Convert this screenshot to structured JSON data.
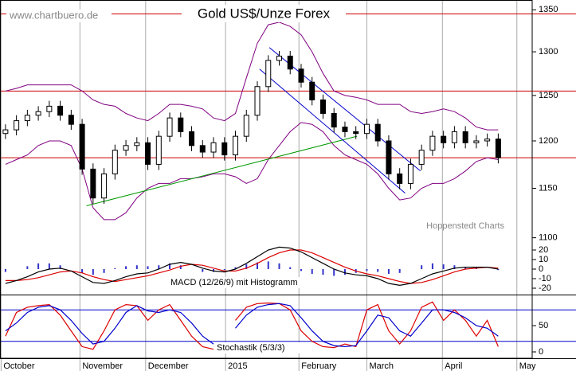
{
  "chart_data": [
    {
      "type": "candlestick",
      "title": "Gold US$/Unze Forex",
      "source": "www.chartbuero.de",
      "credit": "Hoppenstedt Charts",
      "log": true,
      "ylim": [
        1095,
        1360
      ],
      "yticks": [
        1100,
        1150,
        1200,
        1250,
        1300,
        1350
      ],
      "open": [
        1208,
        1212,
        1222,
        1228,
        1232,
        1238,
        1228,
        1218,
        1170,
        1140,
        1165,
        1190,
        1195,
        1198,
        1175,
        1205,
        1225,
        1210,
        1195,
        1188,
        1198,
        1185,
        1205,
        1228,
        1260,
        1290,
        1295,
        1280,
        1265,
        1245,
        1230,
        1215,
        1210,
        1208,
        1218,
        1200,
        1165,
        1155,
        1175,
        1190,
        1205,
        1198,
        1210,
        1198,
        1200,
        1202
      ],
      "high": [
        1218,
        1228,
        1234,
        1238,
        1244,
        1244,
        1234,
        1224,
        1176,
        1171,
        1196,
        1201,
        1204,
        1204,
        1211,
        1231,
        1231,
        1216,
        1201,
        1204,
        1204,
        1211,
        1234,
        1266,
        1296,
        1301,
        1301,
        1286,
        1271,
        1251,
        1236,
        1221,
        1216,
        1224,
        1224,
        1206,
        1171,
        1181,
        1196,
        1211,
        1211,
        1216,
        1216,
        1206,
        1208,
        1208
      ],
      "low": [
        1202,
        1206,
        1216,
        1222,
        1226,
        1222,
        1212,
        1164,
        1134,
        1134,
        1159,
        1184,
        1189,
        1169,
        1169,
        1199,
        1204,
        1189,
        1182,
        1182,
        1179,
        1179,
        1199,
        1222,
        1254,
        1284,
        1274,
        1259,
        1239,
        1224,
        1209,
        1204,
        1202,
        1202,
        1194,
        1159,
        1149,
        1149,
        1169,
        1184,
        1192,
        1192,
        1192,
        1192,
        1194,
        1176
      ],
      "close": [
        1212,
        1222,
        1228,
        1232,
        1238,
        1228,
        1218,
        1170,
        1140,
        1165,
        1190,
        1195,
        1198,
        1175,
        1205,
        1225,
        1210,
        1195,
        1188,
        1198,
        1185,
        1205,
        1228,
        1260,
        1290,
        1295,
        1280,
        1265,
        1245,
        1230,
        1215,
        1210,
        1208,
        1218,
        1200,
        1165,
        1155,
        1175,
        1190,
        1205,
        1198,
        1210,
        1198,
        1200,
        1202,
        1182
      ],
      "bands": {
        "color": "#800080",
        "upper": [
          1255,
          1258,
          1262,
          1262,
          1262,
          1262,
          1262,
          1255,
          1245,
          1240,
          1238,
          1230,
          1225,
          1222,
          1230,
          1240,
          1240,
          1238,
          1235,
          1225,
          1222,
          1230,
          1270,
          1310,
          1332,
          1335,
          1330,
          1320,
          1300,
          1275,
          1255,
          1250,
          1248,
          1245,
          1240,
          1240,
          1240,
          1232,
          1230,
          1232,
          1235,
          1232,
          1225,
          1215,
          1212,
          1212
        ],
        "lower": [
          1175,
          1180,
          1185,
          1195,
          1200,
          1200,
          1195,
          1170,
          1130,
          1118,
          1118,
          1125,
          1140,
          1150,
          1155,
          1155,
          1160,
          1160,
          1162,
          1165,
          1165,
          1162,
          1155,
          1160,
          1180,
          1195,
          1210,
          1220,
          1218,
          1210,
          1195,
          1185,
          1180,
          1175,
          1165,
          1150,
          1138,
          1140,
          1150,
          1155,
          1155,
          1160,
          1168,
          1178,
          1182,
          1180
        ]
      },
      "hlines": {
        "color": "#cc0000",
        "values": [
          1345,
          1255,
          1182
        ]
      },
      "trendlines": [
        {
          "color": "#009900",
          "x": [
            7.9,
            32.6
          ],
          "y": [
            1132,
            1205
          ]
        },
        {
          "color": "#0000cc",
          "x": [
            23.7,
            37
          ],
          "y": [
            1280,
            1145
          ]
        },
        {
          "color": "#0000cc",
          "x": [
            24.6,
            38.4
          ],
          "y": [
            1305,
            1168
          ]
        }
      ]
    },
    {
      "type": "macd",
      "label": "MACD (12/26/9) mit Histogramm",
      "ylim": [
        -25,
        25
      ],
      "yticks": [
        -20,
        -10,
        0,
        10,
        20
      ],
      "macd": {
        "color": "#000000",
        "values": [
          -15,
          -12,
          -8,
          -3,
          0,
          1,
          -2,
          -8,
          -14,
          -15,
          -12,
          -8,
          -5,
          -4,
          0,
          5,
          7,
          5,
          1,
          -2,
          -3,
          0,
          6,
          13,
          20,
          23,
          22,
          18,
          12,
          6,
          0,
          -4,
          -6,
          -7,
          -10,
          -15,
          -17,
          -15,
          -10,
          -5,
          -2,
          1,
          2,
          2,
          2,
          0
        ]
      },
      "signal": {
        "color": "#dd0000",
        "values": [
          -12,
          -12,
          -11,
          -9,
          -6,
          -3,
          -2,
          -4,
          -8,
          -11,
          -13,
          -11,
          -9,
          -7,
          -4,
          -1,
          3,
          5,
          4,
          1,
          -2,
          -2,
          1,
          6,
          12,
          17,
          20,
          20,
          17,
          12,
          7,
          2,
          -2,
          -5,
          -7,
          -10,
          -13,
          -15,
          -14,
          -11,
          -7,
          -3,
          0,
          1,
          2,
          1
        ]
      },
      "histogram": {
        "color": "#3333cc",
        "values": [
          -3,
          0,
          3,
          6,
          6,
          4,
          0,
          -4,
          -6,
          -4,
          1,
          3,
          4,
          3,
          4,
          6,
          4,
          0,
          -3,
          -3,
          -1,
          2,
          5,
          7,
          8,
          6,
          2,
          -2,
          -5,
          -6,
          -7,
          -6,
          -4,
          -2,
          -3,
          -5,
          -4,
          0,
          4,
          6,
          5,
          4,
          2,
          1,
          0,
          -1
        ]
      }
    },
    {
      "type": "line",
      "label": "Stochastik (5/3/3)",
      "ylim": [
        0,
        100
      ],
      "yticks": [
        0,
        50
      ],
      "hlines": [
        20,
        80
      ],
      "series": [
        {
          "color": "#dd0000",
          "values": [
            30,
            75,
            85,
            88,
            90,
            70,
            40,
            10,
            5,
            40,
            80,
            90,
            88,
            60,
            80,
            90,
            60,
            30,
            10,
            5,
            null,
            60,
            85,
            92,
            93,
            92,
            80,
            40,
            20,
            10,
            8,
            15,
            10,
            80,
            90,
            40,
            15,
            40,
            85,
            95,
            60,
            80,
            60,
            30,
            60,
            10
          ]
        },
        {
          "color": "#0000cc",
          "values": [
            40,
            55,
            75,
            85,
            88,
            80,
            60,
            35,
            15,
            20,
            45,
            75,
            88,
            78,
            75,
            80,
            75,
            55,
            30,
            15,
            null,
            45,
            70,
            85,
            90,
            92,
            88,
            65,
            40,
            20,
            12,
            10,
            12,
            40,
            70,
            65,
            40,
            30,
            55,
            80,
            80,
            75,
            65,
            50,
            45,
            30
          ]
        }
      ],
      "xlim": [
        0,
        48.6
      ],
      "xticks": [
        {
          "value": 0.1,
          "label": "October"
        },
        {
          "value": 7.3,
          "label": "November"
        },
        {
          "value": 13.3,
          "label": "December"
        },
        {
          "value": 20.6,
          "label": "2015"
        },
        {
          "value": 27.3,
          "label": "February"
        },
        {
          "value": 33.5,
          "label": "March"
        },
        {
          "value": 40.4,
          "label": "April"
        },
        {
          "value": 47.2,
          "label": "May"
        }
      ]
    }
  ]
}
